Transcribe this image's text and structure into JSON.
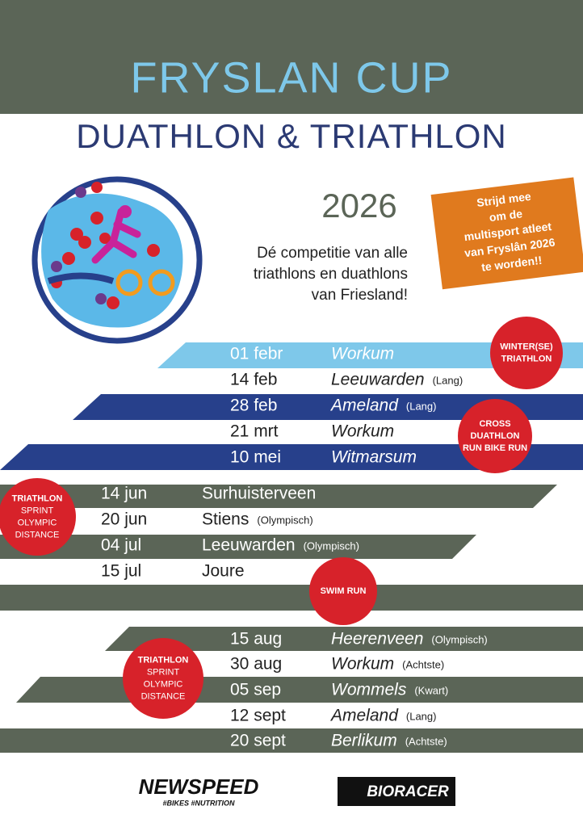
{
  "header": {
    "title": "FRYSLAN CUP",
    "subtitle": "DUATHLON & TRIATHLON"
  },
  "year": "2026",
  "intro": [
    "Dé competitie van alle",
    "triathlons en duathlons",
    "van Friesland!"
  ],
  "callout": [
    "Strijd mee",
    "om de",
    "multisport atleet",
    "van Fryslân 2026",
    "te worden!!"
  ],
  "badges": [
    {
      "lines": [
        "WINTER(SE)",
        "TRIATHLON"
      ]
    },
    {
      "lines": [
        "CROSS",
        "DUATHLON",
        "RUN BIKE RUN"
      ]
    },
    {
      "lines": [
        "TRIATHLON",
        "SPRINT",
        "OLYMPIC",
        "DISTANCE"
      ]
    },
    {
      "lines": [
        "SWIM RUN"
      ]
    },
    {
      "lines": [
        "TRIATHLON",
        "SPRINT",
        "OLYMPIC",
        "DISTANCE"
      ]
    }
  ],
  "events": [
    {
      "date": "01 febr",
      "place": "Workum"
    },
    {
      "date": "14 feb",
      "place": "Leeuwarden",
      "note": "(Lang)"
    },
    {
      "date": "28 feb",
      "place": "Ameland",
      "note": "(Lang)"
    },
    {
      "date": "21 mrt",
      "place": "Workum"
    },
    {
      "date": "10 mei",
      "place": "Witmarsum"
    },
    {
      "date": "14 jun",
      "place": "Surhuisterveen"
    },
    {
      "date": "20 jun",
      "place": "Stiens",
      "note": "(Olympisch)"
    },
    {
      "date": "04 jul",
      "place": "Leeuwarden",
      "note": "(Olympisch)"
    },
    {
      "date": "15 jul",
      "place": "Joure"
    },
    {
      "date": "15 aug",
      "place": "Heerenveen",
      "note": "(Olympisch)"
    },
    {
      "date": "30 aug",
      "place": "Workum",
      "note": "(Achtste)"
    },
    {
      "date": "05 sep",
      "place": "Wommels",
      "note": "(Kwart)"
    },
    {
      "date": "12 sept",
      "place": "Ameland",
      "note": "(Lang)"
    },
    {
      "date": "20 sept",
      "place": "Berlikum",
      "note": "(Achtste)"
    }
  ],
  "footer": {
    "sponsor1": "NEWSPEED",
    "sponsor1_tag": "#BIKES #NUTRITION",
    "sponsor2": "BIORACER"
  }
}
